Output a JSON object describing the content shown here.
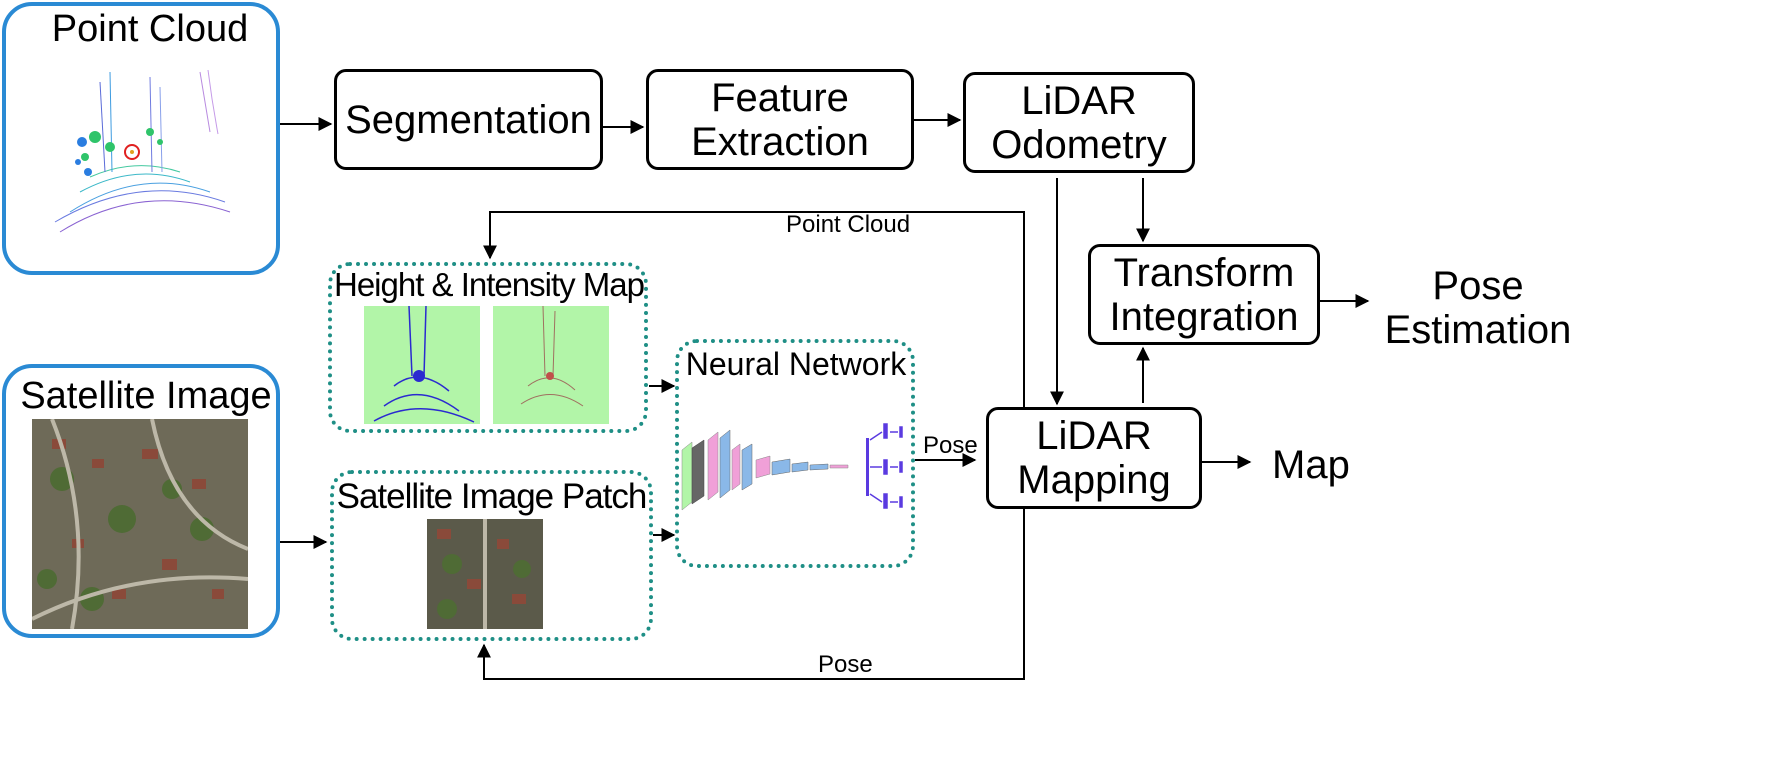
{
  "inputs": {
    "point_cloud_title": "Point Cloud",
    "satellite_image_title": "Satellite Image"
  },
  "pipeline": {
    "segmentation": "Segmentation",
    "feature_extraction": [
      "Feature",
      "Extraction"
    ],
    "lidar_odometry": [
      "LiDAR",
      "Odometry"
    ],
    "transform_integration": [
      "Transform",
      "Integration"
    ],
    "lidar_mapping": [
      "LiDAR",
      "Mapping"
    ]
  },
  "groups": {
    "height_intensity_title": "Height & Intensity Map",
    "satellite_patch_title": "Satellite Image Patch",
    "neural_network_title": "Neural Network"
  },
  "edge_labels": {
    "point_cloud": "Point Cloud",
    "pose_top": "Pose",
    "pose_bottom": "Pose"
  },
  "outputs": {
    "pose_estimation": [
      "Pose",
      "Estimation"
    ],
    "map": "Map"
  },
  "colors": {
    "input_border": "#2a8ad4",
    "dotted_border": "#1f8f86",
    "map_green": "#b2f5a8"
  }
}
